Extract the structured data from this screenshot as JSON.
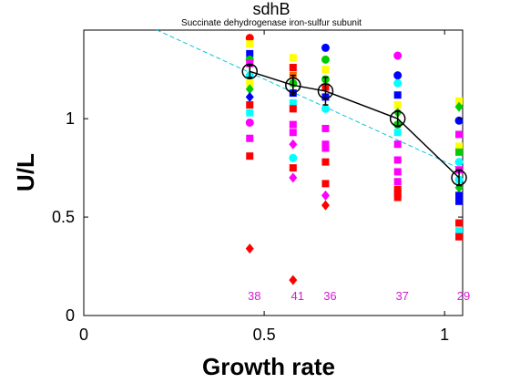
{
  "chart_data": {
    "type": "scatter",
    "title": "sdhB",
    "subtitle": "Succinate dehydrogenase iron-sulfur subunit",
    "xlabel": "Growth rate",
    "ylabel": "U/L",
    "xlim": [
      0,
      1.05
    ],
    "ylim": [
      0,
      1.45
    ],
    "xticks": [
      0,
      0.5,
      1
    ],
    "yticks": [
      0,
      0.5,
      1
    ],
    "xtick_labels": [
      "0",
      "0.5",
      "1"
    ],
    "ytick_labels": [
      "0",
      "0.5",
      "1"
    ],
    "grid": false,
    "colors": {
      "mean_line": "#000000",
      "fit_line": "#00c8dc",
      "count_text": "#d21ed2",
      "palette": [
        "#ff0000",
        "#ff00ff",
        "#00ffff",
        "#0000ff",
        "#00cc00",
        "#ffff00",
        "#000000",
        "#ff6600"
      ]
    },
    "fit_line": {
      "x": [
        0,
        1.05
      ],
      "y": [
        1.62,
        0.74
      ]
    },
    "groups": [
      {
        "x": 0.46,
        "mean": 1.24,
        "err": 0.03,
        "count": "38",
        "points": [
          {
            "y": 1.41,
            "c": "#ff0000",
            "m": "circle"
          },
          {
            "y": 1.38,
            "c": "#ffff00",
            "m": "square"
          },
          {
            "y": 1.33,
            "c": "#0000ff",
            "m": "square"
          },
          {
            "y": 1.3,
            "c": "#00cc00",
            "m": "circle"
          },
          {
            "y": 1.28,
            "c": "#ff00ff",
            "m": "square"
          },
          {
            "y": 1.22,
            "c": "#00ffff",
            "m": "circle"
          },
          {
            "y": 1.18,
            "c": "#ffff00",
            "m": "square"
          },
          {
            "y": 1.15,
            "c": "#00cc00",
            "m": "diamond"
          },
          {
            "y": 1.11,
            "c": "#0000ff",
            "m": "diamond"
          },
          {
            "y": 1.07,
            "c": "#ff0000",
            "m": "square"
          },
          {
            "y": 1.03,
            "c": "#00ffff",
            "m": "square"
          },
          {
            "y": 0.98,
            "c": "#ff00ff",
            "m": "circle"
          },
          {
            "y": 0.9,
            "c": "#ff00ff",
            "m": "square"
          },
          {
            "y": 0.81,
            "c": "#ff0000",
            "m": "square"
          },
          {
            "y": 0.34,
            "c": "#ff0000",
            "m": "diamond"
          }
        ]
      },
      {
        "x": 0.58,
        "mean": 1.17,
        "err": 0.05,
        "count": "41",
        "points": [
          {
            "y": 1.31,
            "c": "#ffff00",
            "m": "square"
          },
          {
            "y": 1.26,
            "c": "#ff0000",
            "m": "square"
          },
          {
            "y": 1.22,
            "c": "#ff6600",
            "m": "square"
          },
          {
            "y": 1.18,
            "c": "#00cc00",
            "m": "circle"
          },
          {
            "y": 1.13,
            "c": "#0000ff",
            "m": "square"
          },
          {
            "y": 1.08,
            "c": "#00ffff",
            "m": "square"
          },
          {
            "y": 1.05,
            "c": "#ff0000",
            "m": "square"
          },
          {
            "y": 0.97,
            "c": "#ff00ff",
            "m": "square"
          },
          {
            "y": 0.93,
            "c": "#ff00ff",
            "m": "square"
          },
          {
            "y": 0.87,
            "c": "#ff00ff",
            "m": "diamond"
          },
          {
            "y": 0.8,
            "c": "#00ffff",
            "m": "circle"
          },
          {
            "y": 0.75,
            "c": "#ff0000",
            "m": "square"
          },
          {
            "y": 0.7,
            "c": "#ff00ff",
            "m": "diamond"
          },
          {
            "y": 0.18,
            "c": "#ff0000",
            "m": "diamond"
          }
        ]
      },
      {
        "x": 0.67,
        "mean": 1.14,
        "err": 0.07,
        "count": "36",
        "points": [
          {
            "y": 1.36,
            "c": "#0000ff",
            "m": "circle"
          },
          {
            "y": 1.3,
            "c": "#00cc00",
            "m": "circle"
          },
          {
            "y": 1.25,
            "c": "#ffff00",
            "m": "square"
          },
          {
            "y": 1.2,
            "c": "#00cc00",
            "m": "circle"
          },
          {
            "y": 1.16,
            "c": "#ff0000",
            "m": "square"
          },
          {
            "y": 1.11,
            "c": "#0000ff",
            "m": "square"
          },
          {
            "y": 1.05,
            "c": "#00ffff",
            "m": "circle"
          },
          {
            "y": 0.95,
            "c": "#ff00ff",
            "m": "square"
          },
          {
            "y": 0.87,
            "c": "#ff00ff",
            "m": "square"
          },
          {
            "y": 0.85,
            "c": "#ff00ff",
            "m": "square"
          },
          {
            "y": 0.78,
            "c": "#ff0000",
            "m": "square"
          },
          {
            "y": 0.67,
            "c": "#ff0000",
            "m": "square"
          },
          {
            "y": 0.61,
            "c": "#ff00ff",
            "m": "diamond"
          },
          {
            "y": 0.56,
            "c": "#ff0000",
            "m": "diamond"
          }
        ]
      },
      {
        "x": 0.87,
        "mean": 1.0,
        "err": 0.04,
        "count": "37",
        "points": [
          {
            "y": 1.32,
            "c": "#ff00ff",
            "m": "circle"
          },
          {
            "y": 1.22,
            "c": "#0000ff",
            "m": "circle"
          },
          {
            "y": 1.18,
            "c": "#00ffff",
            "m": "circle"
          },
          {
            "y": 1.12,
            "c": "#0000ff",
            "m": "square"
          },
          {
            "y": 1.07,
            "c": "#ffff00",
            "m": "square"
          },
          {
            "y": 1.03,
            "c": "#00cc00",
            "m": "diamond"
          },
          {
            "y": 0.97,
            "c": "#00cc00",
            "m": "circle"
          },
          {
            "y": 0.93,
            "c": "#00ffff",
            "m": "square"
          },
          {
            "y": 0.87,
            "c": "#ff00ff",
            "m": "square"
          },
          {
            "y": 0.79,
            "c": "#ff00ff",
            "m": "square"
          },
          {
            "y": 0.73,
            "c": "#ff00ff",
            "m": "square"
          },
          {
            "y": 0.68,
            "c": "#ff00ff",
            "m": "square"
          },
          {
            "y": 0.64,
            "c": "#ff0000",
            "m": "square"
          },
          {
            "y": 0.62,
            "c": "#ff0000",
            "m": "square"
          },
          {
            "y": 0.6,
            "c": "#ff0000",
            "m": "square"
          }
        ]
      },
      {
        "x": 1.04,
        "mean": 0.7,
        "err": 0.04,
        "count": "29",
        "points": [
          {
            "y": 1.09,
            "c": "#ffff00",
            "m": "square"
          },
          {
            "y": 1.06,
            "c": "#00cc00",
            "m": "diamond"
          },
          {
            "y": 0.99,
            "c": "#0000ff",
            "m": "circle"
          },
          {
            "y": 0.92,
            "c": "#ff00ff",
            "m": "square"
          },
          {
            "y": 0.86,
            "c": "#ffff00",
            "m": "square"
          },
          {
            "y": 0.83,
            "c": "#00cc00",
            "m": "square"
          },
          {
            "y": 0.78,
            "c": "#00ffff",
            "m": "circle"
          },
          {
            "y": 0.74,
            "c": "#ff00ff",
            "m": "square"
          },
          {
            "y": 0.69,
            "c": "#00ffff",
            "m": "circle"
          },
          {
            "y": 0.65,
            "c": "#00cc00",
            "m": "diamond"
          },
          {
            "y": 0.61,
            "c": "#0000ff",
            "m": "square"
          },
          {
            "y": 0.58,
            "c": "#0000ff",
            "m": "square"
          },
          {
            "y": 0.47,
            "c": "#ff0000",
            "m": "square"
          },
          {
            "y": 0.43,
            "c": "#00ffff",
            "m": "square"
          },
          {
            "y": 0.4,
            "c": "#ff0000",
            "m": "square"
          }
        ]
      }
    ]
  }
}
